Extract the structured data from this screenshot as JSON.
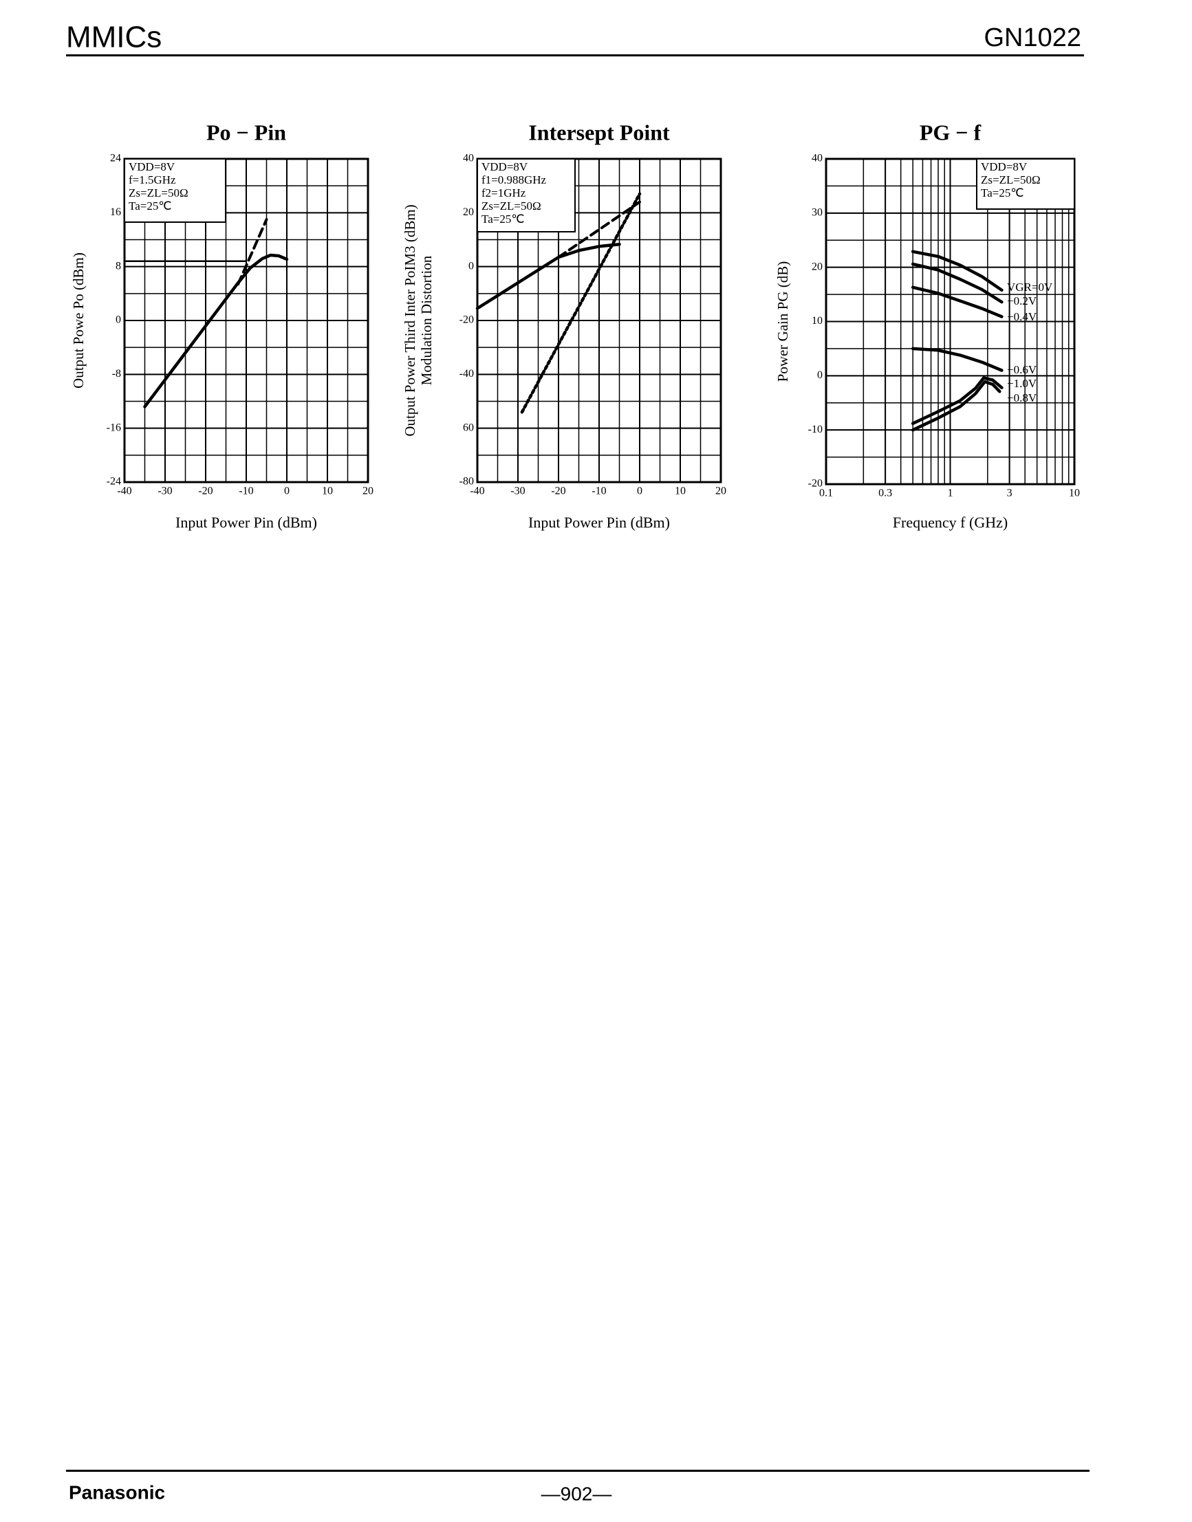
{
  "header": {
    "left": "MMICs",
    "right": "GN1022"
  },
  "footer": {
    "brand": "Panasonic",
    "page": "—902—"
  },
  "chart_data": [
    {
      "type": "line",
      "title": "Po − Pin",
      "xlabel": "Input Power Pin (dBm)",
      "ylabel": [
        "Output Powe Po (dBm)"
      ],
      "xlim": [
        -40,
        20
      ],
      "xticks": [
        -40,
        -30,
        -20,
        -10,
        0,
        10,
        20
      ],
      "xgrid_step": 5,
      "ylim": [
        -24,
        24
      ],
      "yticks": [
        -24,
        -16,
        -8,
        0,
        8,
        16,
        24
      ],
      "ygrid_step": 4,
      "grid": true,
      "annotation": [
        "VDD=8V",
        "f=1.5GHz",
        "Zs=ZL=50Ω",
        "Ta=25℃"
      ],
      "series": [
        {
          "style": "solid",
          "color": "#000000",
          "x": [
            -35,
            -30,
            -25,
            -20,
            -15,
            -12,
            -9,
            -6,
            -4,
            -2,
            0
          ],
          "values": [
            -12.8,
            -8.8,
            -4.8,
            -0.8,
            3.2,
            5.6,
            7.8,
            9.2,
            9.7,
            9.6,
            9.1
          ]
        },
        {
          "style": "thin",
          "color": "#000000",
          "x": [
            -40,
            -10
          ],
          "values": [
            8.8,
            8.8
          ]
        },
        {
          "style": "dashed",
          "color": "#000000",
          "x": [
            -12,
            -5
          ],
          "values": [
            5.4,
            15
          ]
        }
      ]
    },
    {
      "type": "line",
      "title": "Intersept Point",
      "xlabel": "Input Power Pin (dBm)",
      "ylabel": [
        "Output Power Third Inter   PoIM3 (dBm)",
        "Modulation Distortion"
      ],
      "xlim": [
        -40,
        20
      ],
      "xticks": [
        -40,
        -30,
        -20,
        -10,
        0,
        10,
        20
      ],
      "xgrid_step": 5,
      "ylim": [
        -80,
        40
      ],
      "yticks": [
        40,
        20,
        0,
        -20,
        -40,
        {
          "value": -60,
          "label": "60"
        },
        -80
      ],
      "ygrid_step": 10,
      "grid": true,
      "annotation": [
        "VDD=8V",
        "f1=0.988GHz",
        "f2=1GHz",
        "Zs=ZL=50Ω",
        "Ta=25℃"
      ],
      "series": [
        {
          "style": "solid",
          "color": "#000000",
          "x": [
            -40,
            -30,
            -20,
            -15,
            -10,
            -5
          ],
          "values": [
            -15.5,
            -6,
            3.5,
            6,
            7.5,
            8.3
          ]
        },
        {
          "style": "dashed",
          "color": "#000000",
          "x": [
            -20,
            0
          ],
          "values": [
            3.5,
            24
          ]
        },
        {
          "style": "dotted",
          "color": "#000000",
          "x": [
            -29,
            0
          ],
          "values": [
            -54,
            27
          ]
        }
      ]
    },
    {
      "type": "line",
      "title": "PG − f",
      "xlabel": "Frequency f (GHz)",
      "ylabel": [
        "Power Gain PG (dB)"
      ],
      "xscale": "log",
      "xlim": [
        0.1,
        10
      ],
      "xticks": [
        0.1,
        0.3,
        1,
        3,
        10
      ],
      "ylim": [
        -20,
        40
      ],
      "yticks": [
        -20,
        -10,
        0,
        10,
        20,
        30,
        40
      ],
      "ygrid_step": 5,
      "grid": true,
      "annotation": [
        "VDD=8V",
        "Zs=ZL=50Ω",
        "Ta=25℃"
      ],
      "series": [
        {
          "name": "VGR=0V",
          "style": "solid",
          "color": "#000000",
          "x": [
            0.5,
            0.8,
            1.2,
            1.8,
            2.6
          ],
          "values": [
            22.9,
            22,
            20.4,
            18.3,
            15.8
          ]
        },
        {
          "name": "−0.2V",
          "style": "solid",
          "color": "#000000",
          "x": [
            0.5,
            0.8,
            1.2,
            1.8,
            2.6
          ],
          "values": [
            20.6,
            19.5,
            17.8,
            15.9,
            13.6
          ]
        },
        {
          "name": "−0.4V",
          "style": "solid",
          "color": "#000000",
          "x": [
            0.5,
            0.8,
            1.2,
            1.8,
            2.6
          ],
          "values": [
            16.3,
            15.2,
            13.8,
            12.4,
            10.9
          ]
        },
        {
          "name": "−0.6V",
          "style": "solid",
          "color": "#000000",
          "x": [
            0.5,
            0.8,
            1.2,
            1.8,
            2.6
          ],
          "values": [
            5,
            4.7,
            3.8,
            2.5,
            1
          ]
        },
        {
          "name": "−1.0V",
          "style": "solid",
          "color": "#000000",
          "x": [
            0.5,
            0.8,
            1.2,
            1.6,
            1.86,
            2.2,
            2.6
          ],
          "values": [
            -8.8,
            -6.6,
            -4.6,
            -2.3,
            -0.4,
            -0.8,
            -2.2
          ]
        },
        {
          "name": "−0.8V",
          "style": "solid",
          "color": "#000000",
          "x": [
            0.5,
            0.8,
            1.2,
            1.6,
            1.9,
            2.2,
            2.5
          ],
          "values": [
            -10,
            -7.8,
            -5.7,
            -3.3,
            -1.1,
            -1.6,
            -2.9
          ]
        }
      ]
    }
  ]
}
